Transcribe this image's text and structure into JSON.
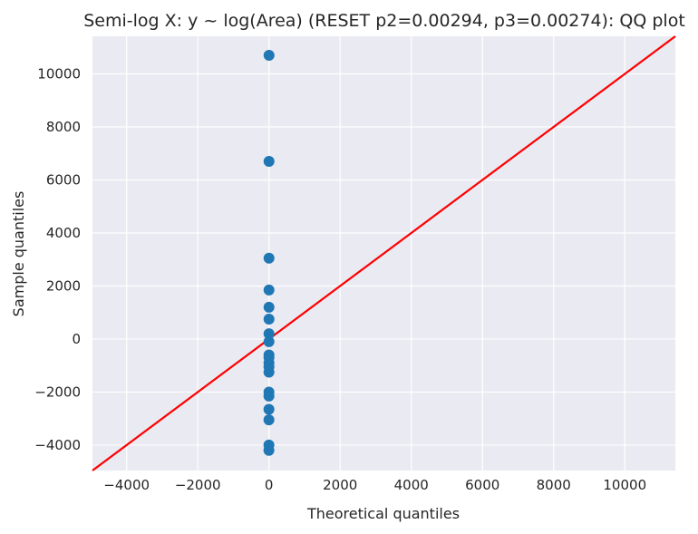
{
  "chart_data": {
    "type": "scatter",
    "title": "Semi-log X: y ~ log(Area) (RESET p2=0.00294, p3=0.00274): QQ plot",
    "xlabel": "Theoretical quantiles",
    "ylabel": "Sample quantiles",
    "xlim": [
      -4960,
      11420
    ],
    "ylim": [
      -4960,
      11420
    ],
    "xticks": [
      -4000,
      -2000,
      0,
      2000,
      4000,
      6000,
      8000,
      10000
    ],
    "yticks": [
      -4000,
      -2000,
      0,
      2000,
      4000,
      6000,
      8000,
      10000
    ],
    "xtick_labels": [
      "−4000",
      "−2000",
      "0",
      "2000",
      "4000",
      "6000",
      "8000",
      "10000"
    ],
    "ytick_labels": [
      "−4000",
      "−2000",
      "0",
      "2000",
      "4000",
      "6000",
      "8000",
      "10000"
    ],
    "grid": true,
    "points": [
      {
        "x": -1.9,
        "y": -4200
      },
      {
        "x": -1.5,
        "y": -4000
      },
      {
        "x": -1.2,
        "y": -3050
      },
      {
        "x": -1.0,
        "y": -2650
      },
      {
        "x": -0.8,
        "y": -2150
      },
      {
        "x": -0.6,
        "y": -2000
      },
      {
        "x": -0.45,
        "y": -1250
      },
      {
        "x": -0.3,
        "y": -1050
      },
      {
        "x": -0.15,
        "y": -900
      },
      {
        "x": 0.0,
        "y": -700
      },
      {
        "x": 0.15,
        "y": -600
      },
      {
        "x": 0.3,
        "y": -100
      },
      {
        "x": 0.45,
        "y": 200
      },
      {
        "x": 0.6,
        "y": 750
      },
      {
        "x": 0.8,
        "y": 1200
      },
      {
        "x": 1.0,
        "y": 1850
      },
      {
        "x": 1.2,
        "y": 3050
      },
      {
        "x": 1.5,
        "y": 6700
      },
      {
        "x": 1.9,
        "y": 10700
      }
    ],
    "reference_line": {
      "slope": 1,
      "intercept": 0
    },
    "colors": {
      "background": "#eaeaf2",
      "grid": "#ffffff",
      "points": "#1f77b4",
      "line": "#ff0000",
      "text": "#262626"
    }
  }
}
